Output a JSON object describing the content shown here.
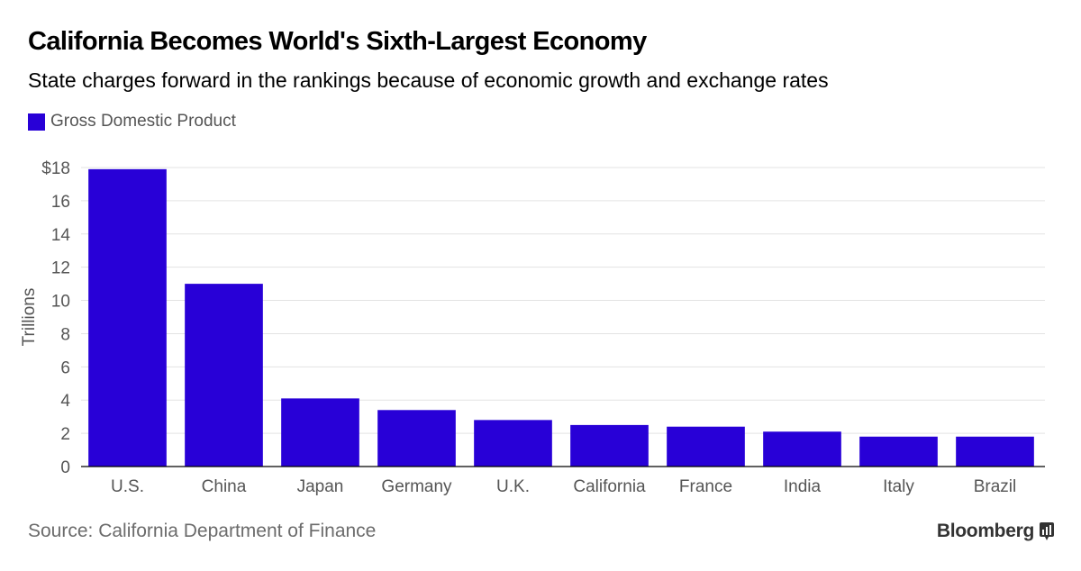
{
  "header": {
    "title": "California Becomes World's Sixth-Largest Economy",
    "subtitle": "State charges forward in the rankings because of economic growth and exchange rates"
  },
  "legend": {
    "label": "Gross Domestic Product"
  },
  "colors": {
    "bar": "#2800d7",
    "grid": "#e3e3e3",
    "axis": "#000000"
  },
  "chart_data": {
    "type": "bar",
    "categories": [
      "U.S.",
      "China",
      "Japan",
      "Germany",
      "U.K.",
      "California",
      "France",
      "India",
      "Italy",
      "Brazil"
    ],
    "series": [
      {
        "name": "Gross Domestic Product",
        "values": [
          17.9,
          11.0,
          4.1,
          3.4,
          2.8,
          2.5,
          2.4,
          2.1,
          1.8,
          1.8
        ]
      }
    ],
    "ylabel": "Trillions",
    "ylim": [
      0,
      18
    ],
    "yticks": [
      0,
      2,
      4,
      6,
      8,
      10,
      12,
      14,
      16,
      18
    ],
    "ytick_labels": [
      "0",
      "2",
      "4",
      "6",
      "8",
      "10",
      "12",
      "14",
      "16",
      "$18"
    ],
    "grid": true
  },
  "footer": {
    "source": "Source: California Department of Finance",
    "brand": "Bloomberg",
    "brand_icon": "bloomberg-chart-icon"
  }
}
